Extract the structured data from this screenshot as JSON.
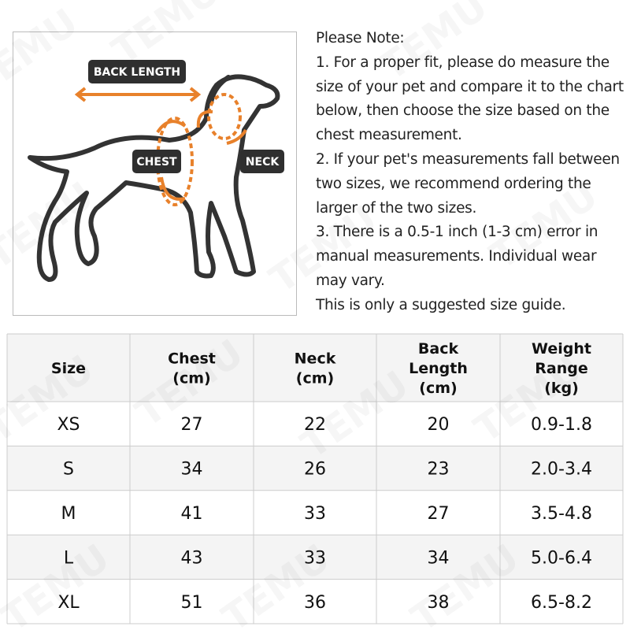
{
  "watermark": "TEMU",
  "diagram": {
    "labels": {
      "back_length": "BACK LENGTH",
      "chest": "CHEST",
      "neck": "NECK"
    }
  },
  "notes": {
    "lines": [
      "Please Note:",
      "1. For a proper fit, please do measure the",
      "size of your pet and compare it to the chart",
      "below, then choose the size based on the",
      "chest measurement.",
      "2. If your pet's measurements fall between",
      "two sizes, we recommend ordering the",
      "larger of the two sizes.",
      "3. There is a 0.5-1 inch (1-3 cm) error in",
      "manual measurements. Individual wear",
      "may vary.",
      "This is only a suggested size guide."
    ]
  },
  "table": {
    "header": [
      [
        "Size"
      ],
      [
        "Chest",
        "(cm)"
      ],
      [
        "Neck",
        "(cm)"
      ],
      [
        "Back",
        "Length",
        "(cm)"
      ],
      [
        "Weight",
        "Range",
        "(kg)"
      ]
    ],
    "rows": [
      [
        "XS",
        27,
        22,
        20,
        "0.9-1.8"
      ],
      [
        "S",
        34,
        26,
        23,
        "2.0-3.4"
      ],
      [
        "M",
        41,
        33,
        27,
        "3.5-4.8"
      ],
      [
        "L",
        43,
        33,
        34,
        "5.0-6.4"
      ],
      [
        "XL",
        51,
        36,
        38,
        "6.5-8.2"
      ]
    ]
  }
}
